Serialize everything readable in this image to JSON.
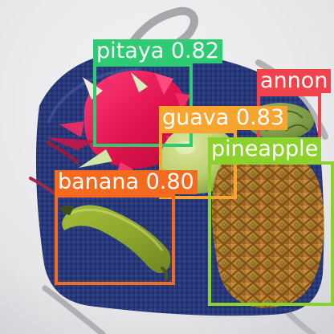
{
  "detections": [
    {
      "label_text": "pitaya 0.82",
      "color": "#2fcb73"
    },
    {
      "label_text": "annon",
      "color": "#f2424c"
    },
    {
      "label_text": "guava 0.83",
      "color": "#f7a52f"
    },
    {
      "label_text": "pineapple",
      "color": "#8dd12c"
    },
    {
      "label_text": "banana 0.80",
      "color": "#f46a1f"
    }
  ],
  "objects": {
    "pitaya": "red dragon fruit with green-tipped scales",
    "annon": "green custard apple",
    "guava": "light green guava",
    "pineapple": "whole pineapple with diamond-pattern skin",
    "banana": "single green banana"
  }
}
